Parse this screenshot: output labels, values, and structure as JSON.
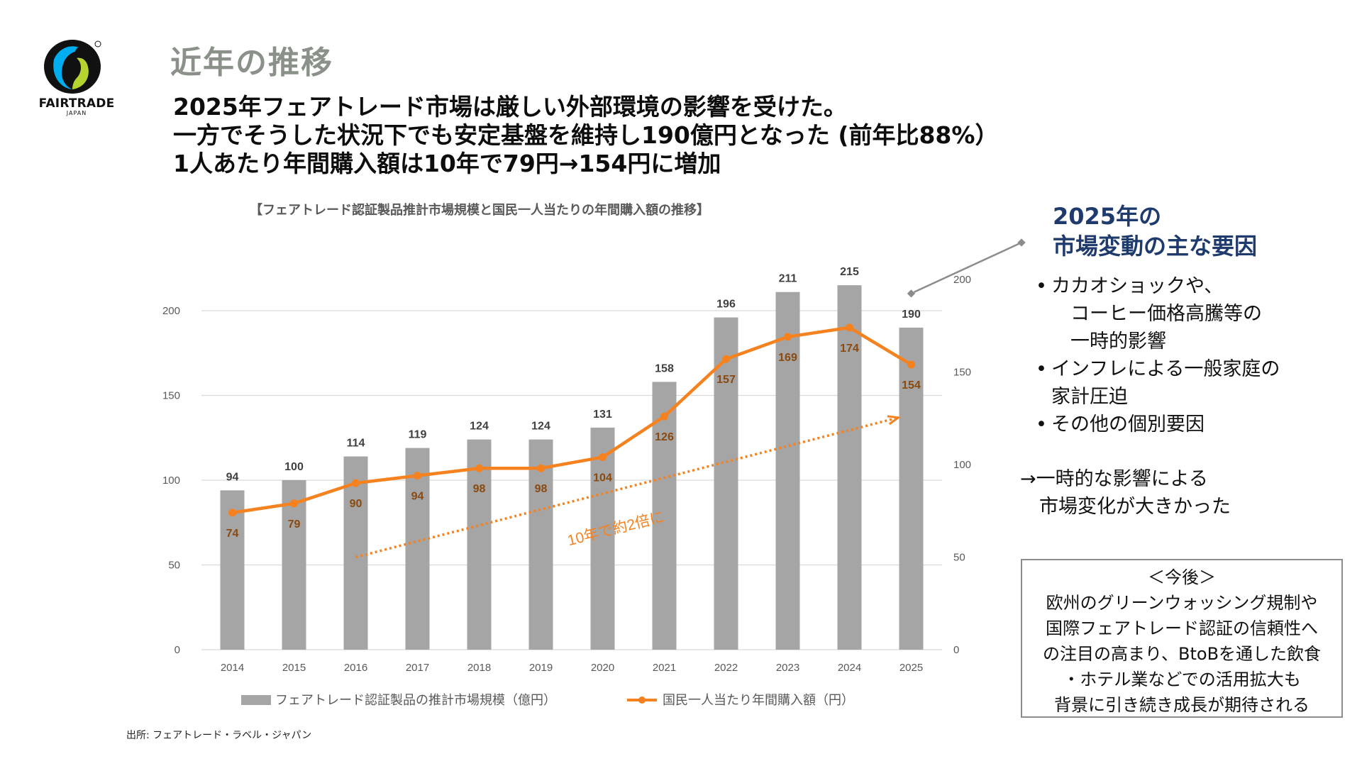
{
  "logo": {
    "text": "FAIRTRADE",
    "sub": "JAPAN",
    "reg": "®"
  },
  "section_title": "近年の推移",
  "headlines": [
    "2025年フェアトレード市場は厳しい外部環境の影響を受けた。",
    "一方でそうした状況下でも安定基盤を維持し190億円となった (前年比88%）",
    "1人あたり年間購入額は10年で79円→154円に増加"
  ],
  "source": "出所: フェアトレード・ラベル・ジャパン",
  "chart_data": {
    "type": "bar",
    "title": "【フェアトレード認証製品推計市場規模と国民一人当たりの年間購入額の推移】",
    "categories": [
      "2014",
      "2015",
      "2016",
      "2017",
      "2018",
      "2019",
      "2020",
      "2021",
      "2022",
      "2023",
      "2024",
      "2025"
    ],
    "series": [
      {
        "name": "フェアトレード認証製品の推計市場規模（億円）",
        "type": "bar",
        "axis": "left",
        "values": [
          94,
          100,
          114,
          119,
          124,
          124,
          131,
          158,
          196,
          211,
          215,
          190
        ]
      },
      {
        "name": "国民一人当たり年間購入額（円）",
        "type": "line",
        "axis": "right",
        "values": [
          74,
          79,
          90,
          94,
          98,
          98,
          104,
          126,
          157,
          169,
          174,
          154
        ]
      }
    ],
    "left_axis": {
      "ylim": [
        0,
        200
      ],
      "ticks": [
        "0",
        "50",
        "100",
        "150",
        "200"
      ]
    },
    "right_axis": {
      "ylim": [
        0,
        200
      ],
      "ticks": [
        "0",
        "50",
        "100",
        "150",
        "200"
      ]
    },
    "trend": {
      "label": "10年で約2倍に",
      "from_category": "2016",
      "to_category": "2025",
      "from_value": 50,
      "to_value": 125
    },
    "legend_position": "bottom",
    "colors": {
      "bar": "#a5a5a5",
      "line": "#f5821f",
      "line_label": "#8a4a10",
      "bar_label": "#404040",
      "trend": "#f5821f",
      "grid": "#d9d9d9"
    }
  },
  "factors": {
    "heading": [
      "2025年の",
      "市場変動の主な要因"
    ],
    "bullet": "•",
    "items": [
      [
        "カカオショックや、",
        "　コーヒー価格高騰等の",
        "　一時的影響"
      ],
      [
        "インフレによる一般家庭の",
        "家計圧迫"
      ],
      [
        "その他の個別要因"
      ]
    ]
  },
  "conclusion": [
    "→一時的な影響による",
    "　市場変化が大きかった"
  ],
  "outlook": {
    "title": "＜今後＞",
    "lines": [
      "欧州のグリーンウォッシング規制や",
      "国際フェアトレード認証の信頼性へ",
      "の注目の高まり、BtoBを通した飲食",
      "・ホテル業などでの活用拡大も",
      "背景に引き続き成長が期待される"
    ]
  }
}
